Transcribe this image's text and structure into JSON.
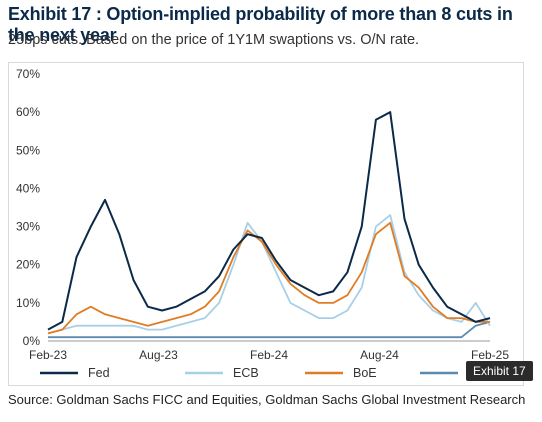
{
  "title": "Exhibit 17 : Option-implied probability of more than 8 cuts in the next year",
  "subtitle": "25bps cuts. Based on the price of 1Y1M swaptions vs. O/N rate.",
  "source": "Source: Goldman Sachs FICC and Equities, Goldman Sachs Global Investment Research",
  "tooltip": "Exhibit 17",
  "chart_data": {
    "type": "line",
    "ylim": [
      0,
      70
    ],
    "yticks": [
      "0%",
      "10%",
      "20%",
      "30%",
      "40%",
      "50%",
      "60%",
      "70%"
    ],
    "xticks": [
      "Feb-23",
      "Aug-23",
      "Feb-24",
      "Aug-24",
      "Feb-25"
    ],
    "grid": false,
    "legend_position": "bottom",
    "x": [
      "2023-02",
      "2023-03",
      "2023-03b",
      "2023-04",
      "2023-04b",
      "2023-05",
      "2023-05b",
      "2023-06",
      "2023-07",
      "2023-08",
      "2023-09",
      "2023-10",
      "2023-11",
      "2023-12",
      "2024-01",
      "2024-01b",
      "2024-02",
      "2024-03",
      "2024-04",
      "2024-05",
      "2024-06",
      "2024-07",
      "2024-07b",
      "2024-08",
      "2024-08b",
      "2024-09",
      "2024-10",
      "2024-11",
      "2024-12",
      "2025-01",
      "2025-02",
      "2025-02b"
    ],
    "series": [
      {
        "name": "Fed",
        "color": "#0b2a4a",
        "values": [
          3,
          5,
          22,
          30,
          37,
          28,
          16,
          9,
          8,
          9,
          11,
          13,
          17,
          24,
          28,
          27,
          21,
          16,
          14,
          12,
          13,
          18,
          30,
          58,
          60,
          32,
          20,
          14,
          9,
          7,
          5,
          6
        ]
      },
      {
        "name": "ECB",
        "color": "#a8cfe8",
        "values": [
          2,
          3,
          4,
          4,
          4,
          4,
          4,
          3,
          3,
          4,
          5,
          6,
          10,
          20,
          31,
          26,
          18,
          10,
          8,
          6,
          6,
          8,
          14,
          30,
          33,
          18,
          12,
          8,
          6,
          5,
          10,
          4
        ]
      },
      {
        "name": "BoE",
        "color": "#e07d23",
        "values": [
          2,
          3,
          7,
          9,
          7,
          6,
          5,
          4,
          5,
          6,
          7,
          9,
          13,
          22,
          29,
          26,
          20,
          15,
          12,
          10,
          10,
          12,
          18,
          28,
          31,
          17,
          14,
          9,
          6,
          6,
          5,
          5
        ]
      },
      {
        "name": "BoJ",
        "color": "#5a8ab0",
        "values": [
          1,
          1,
          1,
          1,
          1,
          1,
          1,
          1,
          1,
          1,
          1,
          1,
          1,
          1,
          1,
          1,
          1,
          1,
          1,
          1,
          1,
          1,
          1,
          1,
          1,
          1,
          1,
          1,
          1,
          1,
          4,
          5
        ]
      }
    ],
    "legend_labels": [
      "Fed",
      "ECB",
      "BoE",
      "Bo..."
    ]
  }
}
